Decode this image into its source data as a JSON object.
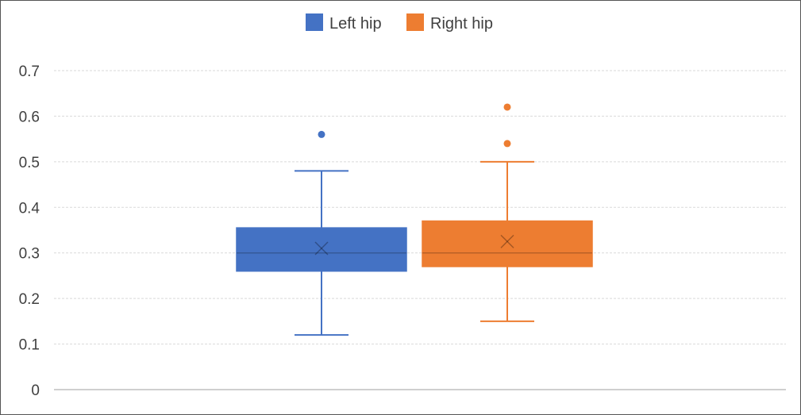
{
  "chart_data": {
    "type": "box",
    "title": "",
    "xlabel": "",
    "ylabel": "",
    "ylim": [
      0,
      0.7
    ],
    "yticks": [
      0,
      0.1,
      0.2,
      0.3,
      0.4,
      0.5,
      0.6,
      0.7
    ],
    "ytick_labels": [
      "0",
      "0.1",
      "0.2",
      "0.3",
      "0.4",
      "0.5",
      "0.6",
      "0.7"
    ],
    "grid": true,
    "legend_position": "top-center",
    "series": [
      {
        "name": "Left hip",
        "color": "#4472C4",
        "min": 0.12,
        "q1": 0.26,
        "median": 0.3,
        "mean": 0.31,
        "q3": 0.355,
        "max": 0.48,
        "outliers": [
          0.56
        ]
      },
      {
        "name": "Right hip",
        "color": "#ED7D31",
        "min": 0.15,
        "q1": 0.27,
        "median": 0.3,
        "mean": 0.325,
        "q3": 0.37,
        "max": 0.5,
        "outliers": [
          0.54,
          0.62
        ]
      }
    ]
  }
}
